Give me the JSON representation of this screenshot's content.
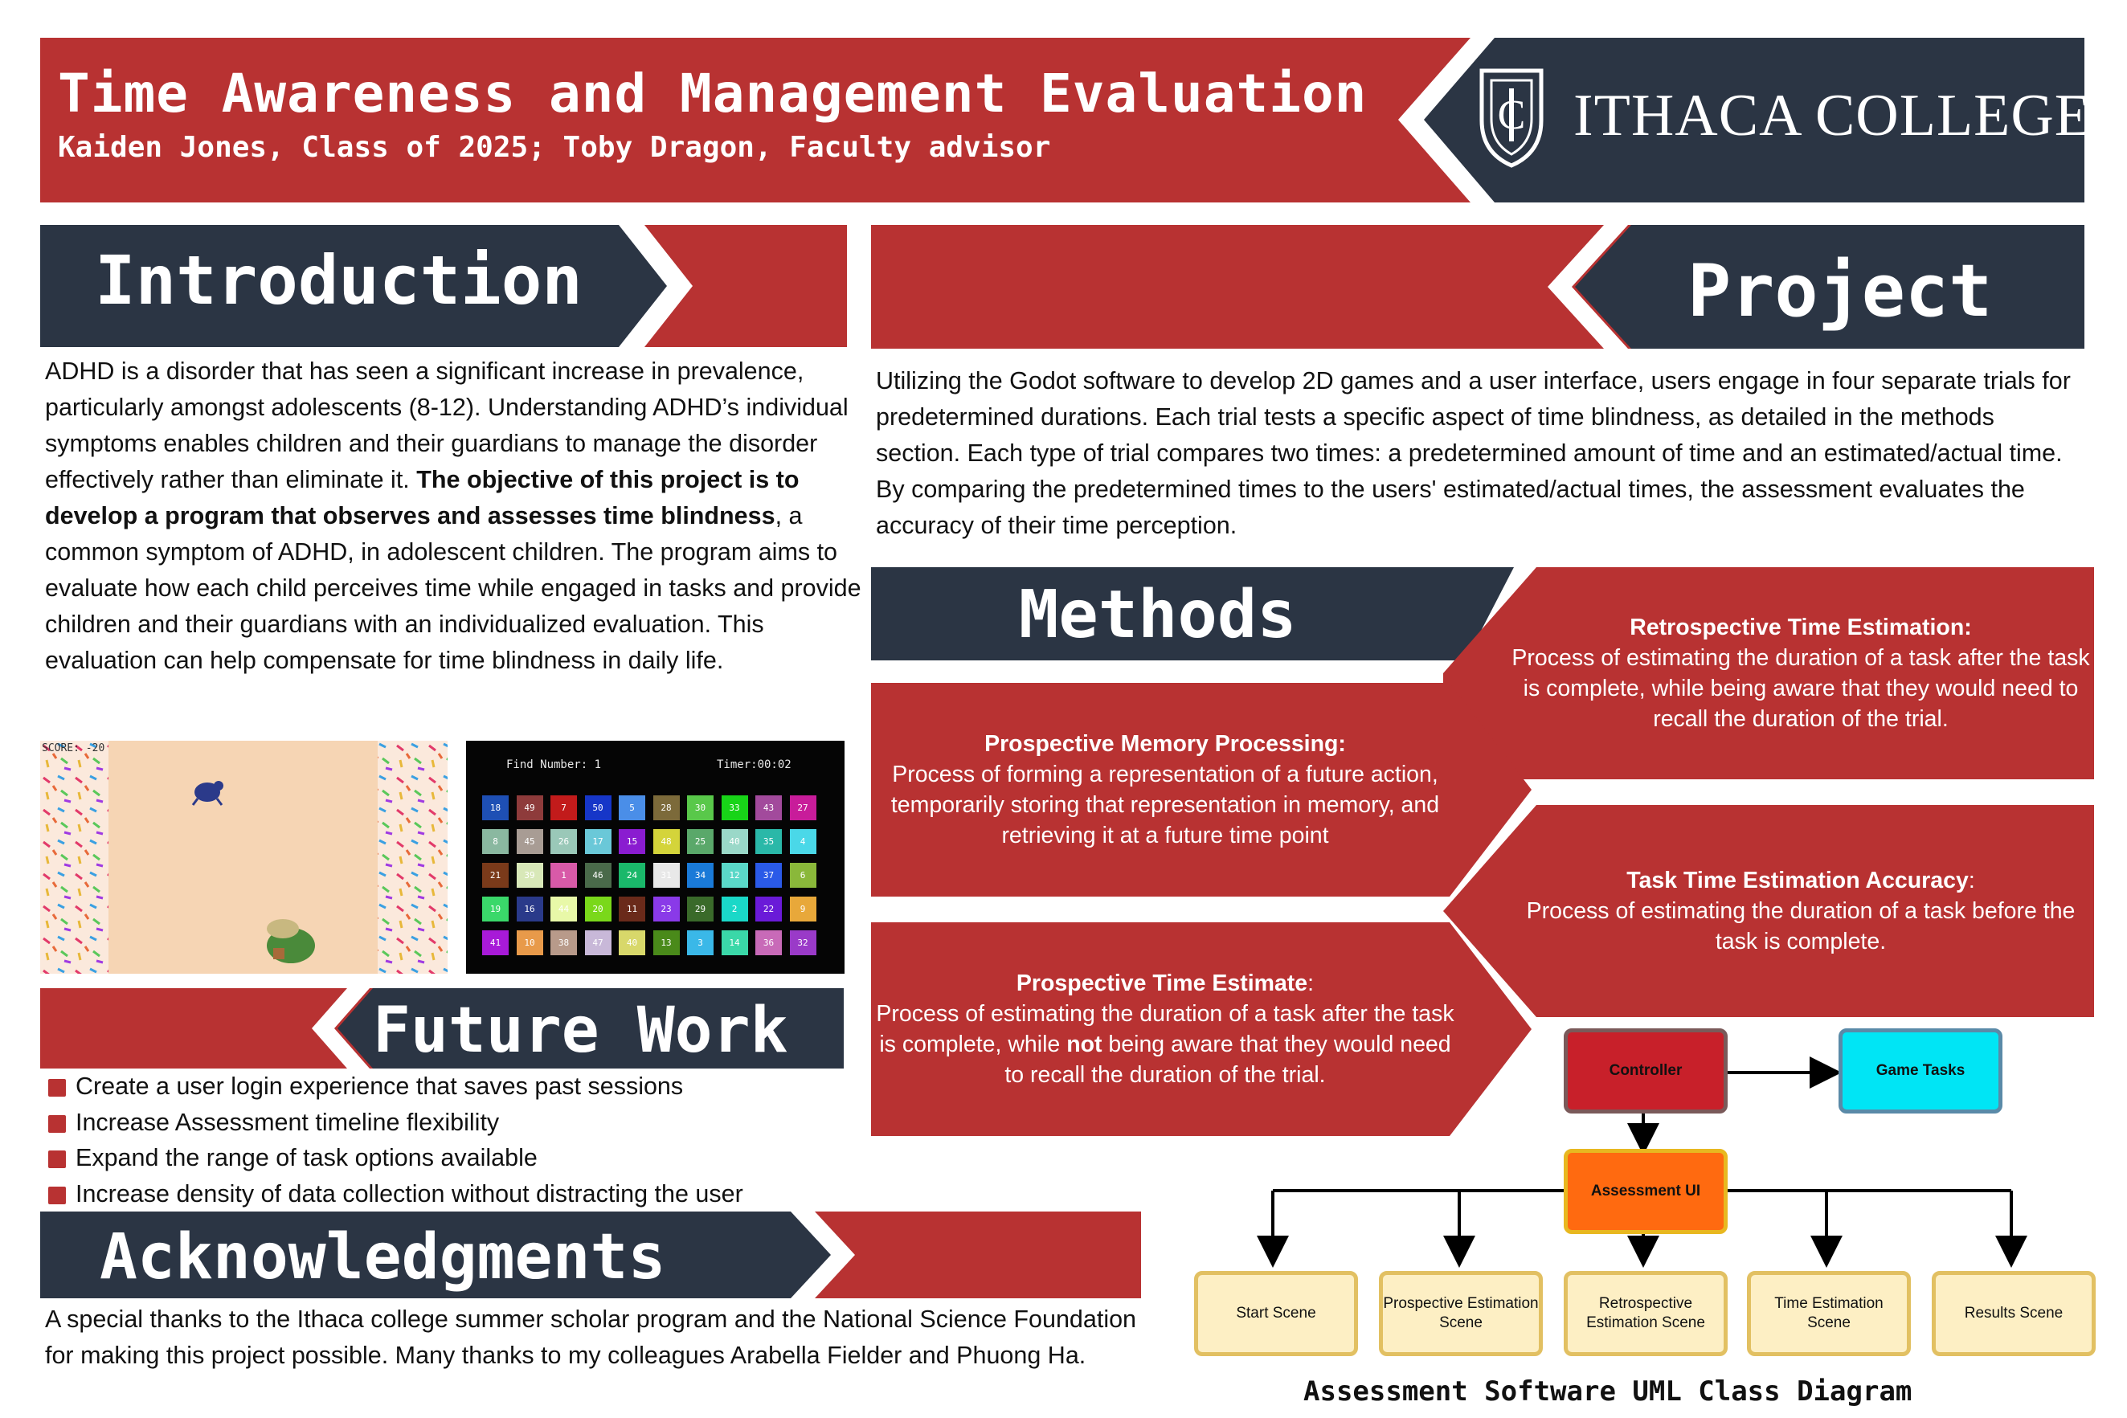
{
  "header": {
    "title": "Time Awareness and Management Evaluation",
    "subtitle": "Kaiden Jones, Class of 2025; Toby Dragon, Faculty advisor",
    "logo_text": "ITHACA COLLEGE",
    "logo_mark": "IC"
  },
  "introduction": {
    "heading": "Introduction",
    "text_a": "ADHD is a disorder that has seen a significant increase in prevalence, particularly amongst adolescents (8-12). Understanding ADHD’s individual symptoms enables children and their guardians to manage the disorder effectively rather than eliminate it. ",
    "text_bold": "The objective of this project is to develop a program that observes and assesses time blindness",
    "text_b": ", a common symptom of ADHD, in adolescent children. The program aims to evaluate how each child perceives time while engaged in tasks and provide children and their guardians with an individualized evaluation. This evaluation can help compensate for time blindness in daily life."
  },
  "game1": {
    "score": "SCORE: -20"
  },
  "game2": {
    "find_label": "Find Number: 1",
    "timer_label": "Timer:00:02",
    "tiles": [
      {
        "n": "18",
        "c": "#1e4fb4"
      },
      {
        "n": "49",
        "c": "#8e3b3b"
      },
      {
        "n": "7",
        "c": "#c21b1b"
      },
      {
        "n": "50",
        "c": "#1636c8"
      },
      {
        "n": "5",
        "c": "#4a8ee8"
      },
      {
        "n": "28",
        "c": "#7c6a3a"
      },
      {
        "n": "30",
        "c": "#59c84a"
      },
      {
        "n": "33",
        "c": "#18d418"
      },
      {
        "n": "43",
        "c": "#a24a9c"
      },
      {
        "n": "27",
        "c": "#c81c9a"
      },
      {
        "n": "8",
        "c": "#8ab8a0"
      },
      {
        "n": "45",
        "c": "#a89c94"
      },
      {
        "n": "26",
        "c": "#9ac8b8"
      },
      {
        "n": "17",
        "c": "#6ac8d8"
      },
      {
        "n": "15",
        "c": "#8a1cd0"
      },
      {
        "n": "48",
        "c": "#d4d43a"
      },
      {
        "n": "25",
        "c": "#5aa86a"
      },
      {
        "n": "40",
        "c": "#9ad8c8"
      },
      {
        "n": "35",
        "c": "#2ab8a8"
      },
      {
        "n": "4",
        "c": "#4ad8e8"
      },
      {
        "n": "21",
        "c": "#7a3a1a"
      },
      {
        "n": "39",
        "c": "#d8e8b8"
      },
      {
        "n": "1",
        "c": "#d85aa8"
      },
      {
        "n": "46",
        "c": "#4a6a4a"
      },
      {
        "n": "24",
        "c": "#1ab86a"
      },
      {
        "n": "31",
        "c": "#e8e8e8"
      },
      {
        "n": "34",
        "c": "#1a7ad8"
      },
      {
        "n": "12",
        "c": "#5ad8c8"
      },
      {
        "n": "37",
        "c": "#2a5ae8"
      },
      {
        "n": "6",
        "c": "#8ab83a"
      },
      {
        "n": "19",
        "c": "#3ad86a"
      },
      {
        "n": "16",
        "c": "#2a3a8a"
      },
      {
        "n": "44",
        "c": "#e8f8a8"
      },
      {
        "n": "20",
        "c": "#7ad81a"
      },
      {
        "n": "11",
        "c": "#6a2a1a"
      },
      {
        "n": "23",
        "c": "#8a3ae8"
      },
      {
        "n": "29",
        "c": "#3a6a2a"
      },
      {
        "n": "2",
        "c": "#1ad8c8"
      },
      {
        "n": "22",
        "c": "#6a1ad8"
      },
      {
        "n": "9",
        "c": "#e8a83a"
      },
      {
        "n": "41",
        "c": "#a81ad8"
      },
      {
        "n": "10",
        "c": "#e89a4a"
      },
      {
        "n": "38",
        "c": "#b89a8a"
      },
      {
        "n": "47",
        "c": "#c8b8d8"
      },
      {
        "n": "40",
        "c": "#d8d86a"
      },
      {
        "n": "13",
        "c": "#4a8a1a"
      },
      {
        "n": "3",
        "c": "#3ab8e8"
      },
      {
        "n": "14",
        "c": "#3ad8a8"
      },
      {
        "n": "36",
        "c": "#c86ab8"
      },
      {
        "n": "32",
        "c": "#9a3ac8"
      }
    ]
  },
  "future_work": {
    "heading": "Future Work",
    "items": [
      "Create a user login experience that saves past sessions",
      "Increase Assessment timeline flexibility",
      "Expand the range of task options available",
      "Increase density of data collection without distracting the user"
    ]
  },
  "acknowledgments": {
    "heading": "Acknowledgments",
    "text": "A special thanks to the Ithaca college summer scholar program and the National Science Foundation for making this project possible. Many thanks to my colleagues Arabella Fielder and Phuong Ha."
  },
  "project": {
    "heading": "Project",
    "text": "Utilizing the Godot software to develop 2D games and a user interface, users engage in four separate trials for predetermined durations. Each trial tests a specific aspect of time blindness, as detailed in the methods section. Each type of trial compares two times: a predetermined amount of time and an estimated/actual time. By comparing the predetermined times to the users' estimated/actual times, the assessment evaluates the accuracy of their time perception."
  },
  "methods": {
    "heading": "Methods",
    "retrospective": {
      "title": "Retrospective Time Estimation:",
      "text": "Process of estimating the duration of a task after the task is complete, while being aware that they would need to recall the duration of the trial."
    },
    "prospective_memory": {
      "title": "Prospective Memory Processing:",
      "text": "Process of forming a representation of a future action, temporarily storing that representation in memory, and retrieving it at a future time point"
    },
    "task_time": {
      "title": "Task Time Estimation Accuracy",
      "colon": ":",
      "text": "Process of estimating the duration of a task before the task is complete."
    },
    "prospective_estimate": {
      "title": "Prospective Time Estimate",
      "colon": ":",
      "text_a": "Process of estimating the duration of a task after the task is complete, while ",
      "text_bold": "not",
      "text_b": " being aware that they would need to recall the duration of the trial."
    }
  },
  "uml": {
    "caption": "Assessment Software UML Class Diagram",
    "controller": "Controller",
    "game_tasks": "Game Tasks",
    "assessment_ui": "Assessment UI",
    "scenes": [
      "Start Scene",
      "Prospective Estimation Scene",
      "Retrospective Estimation Scene",
      "Time Estimation Scene",
      "Results Scene"
    ]
  },
  "colors": {
    "red": "#b83232",
    "navy": "#2b3544",
    "cyan": "#00e5f5",
    "orange": "#ff6a10",
    "cream": "#fdefc4"
  }
}
